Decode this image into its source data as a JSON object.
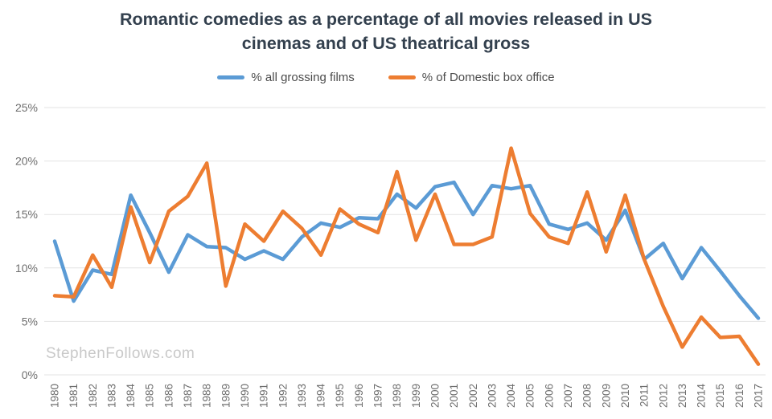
{
  "watermark": "StephenFollows.com",
  "chart_data": {
    "type": "line",
    "title": "Romantic comedies as a percentage of all movies released in US cinemas and of US theatrical gross",
    "xlabel": "",
    "ylabel": "",
    "x": [
      1980,
      1981,
      1982,
      1983,
      1984,
      1985,
      1986,
      1987,
      1988,
      1989,
      1990,
      1991,
      1992,
      1993,
      1994,
      1995,
      1996,
      1997,
      1998,
      1999,
      2000,
      2001,
      2002,
      2003,
      2004,
      2005,
      2006,
      2007,
      2008,
      2009,
      2010,
      2011,
      2012,
      2013,
      2014,
      2015,
      2016,
      2017
    ],
    "series": [
      {
        "name": "% all grossing films",
        "color": "#5b9bd5",
        "values": [
          12.5,
          6.9,
          9.8,
          9.4,
          16.8,
          13.3,
          9.6,
          13.1,
          12.0,
          11.9,
          10.8,
          11.6,
          10.8,
          12.9,
          14.2,
          13.8,
          14.7,
          14.6,
          16.9,
          15.6,
          17.6,
          18.0,
          15.0,
          17.7,
          17.4,
          17.7,
          14.1,
          13.6,
          14.2,
          12.6,
          15.4,
          10.8,
          12.3,
          9.0,
          11.9,
          9.7,
          7.4,
          5.3
        ]
      },
      {
        "name": "% of Domestic box office",
        "color": "#ed7d31",
        "values": [
          7.4,
          7.3,
          11.2,
          8.2,
          15.7,
          10.5,
          15.3,
          16.7,
          19.8,
          8.3,
          14.1,
          12.5,
          15.3,
          13.7,
          11.2,
          15.5,
          14.1,
          13.3,
          19.0,
          12.6,
          16.9,
          12.2,
          12.2,
          12.9,
          21.2,
          15.1,
          12.9,
          12.3,
          17.1,
          11.5,
          16.8,
          10.8,
          6.4,
          2.6,
          5.4,
          3.5,
          3.6,
          1.0
        ]
      }
    ],
    "ylim": [
      0,
      25
    ],
    "yticks": [
      0,
      5,
      10,
      15,
      20,
      25
    ],
    "ytick_labels": [
      "0%",
      "5%",
      "10%",
      "15%",
      "20%",
      "25%"
    ],
    "grid": true,
    "legend_position": "top"
  },
  "style": {
    "grid_color": "#e3e3e3",
    "tick_label_color": "#6e6e6e",
    "title_color": "#33404e",
    "background": "#ffffff"
  }
}
